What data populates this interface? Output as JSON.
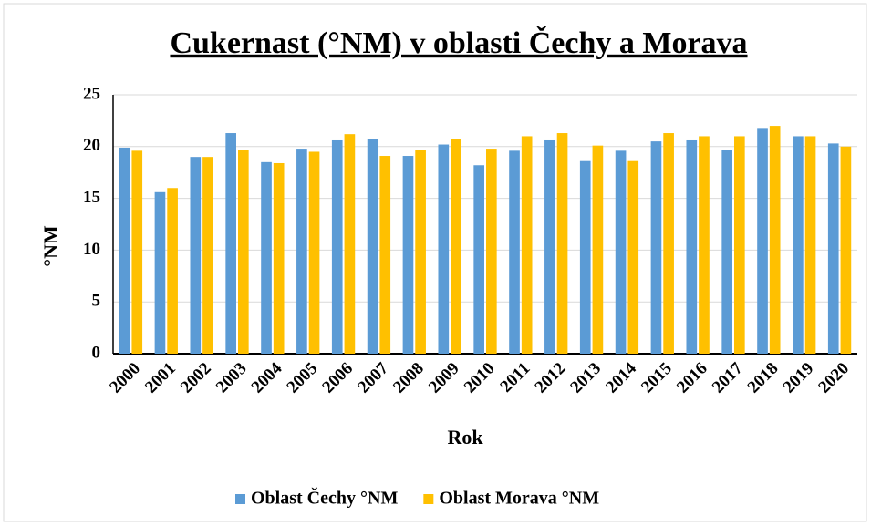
{
  "chart_data": {
    "type": "bar",
    "title": "Cukernast (°NM) v oblasti Čechy a Morava",
    "xlabel": "Rok",
    "ylabel": "°NM",
    "categories": [
      "2000",
      "2001",
      "2002",
      "2003",
      "2004",
      "2005",
      "2006",
      "2007",
      "2008",
      "2009",
      "2010",
      "2011",
      "2012",
      "2013",
      "2014",
      "2015",
      "2016",
      "2017",
      "2018",
      "2019",
      "2020"
    ],
    "series": [
      {
        "name": "Oblast Čechy °NM",
        "color": "#5b9bd5",
        "values": [
          19.9,
          15.6,
          19.0,
          21.3,
          18.5,
          19.8,
          20.6,
          20.7,
          19.1,
          20.2,
          18.2,
          19.6,
          20.6,
          18.6,
          19.6,
          20.5,
          20.6,
          19.7,
          21.8,
          21.0,
          20.3
        ]
      },
      {
        "name": "Oblast Morava °NM",
        "color": "#ffc000",
        "values": [
          19.6,
          16.0,
          19.0,
          19.7,
          18.4,
          19.5,
          21.2,
          19.1,
          19.7,
          20.7,
          19.8,
          21.0,
          21.3,
          20.1,
          18.6,
          21.3,
          21.0,
          21.0,
          22.0,
          21.0,
          20.0
        ]
      }
    ],
    "ylim": [
      0,
      25
    ],
    "yticks": [
      0,
      5,
      10,
      15,
      20,
      25
    ],
    "grid": true,
    "legend": "bottom"
  }
}
